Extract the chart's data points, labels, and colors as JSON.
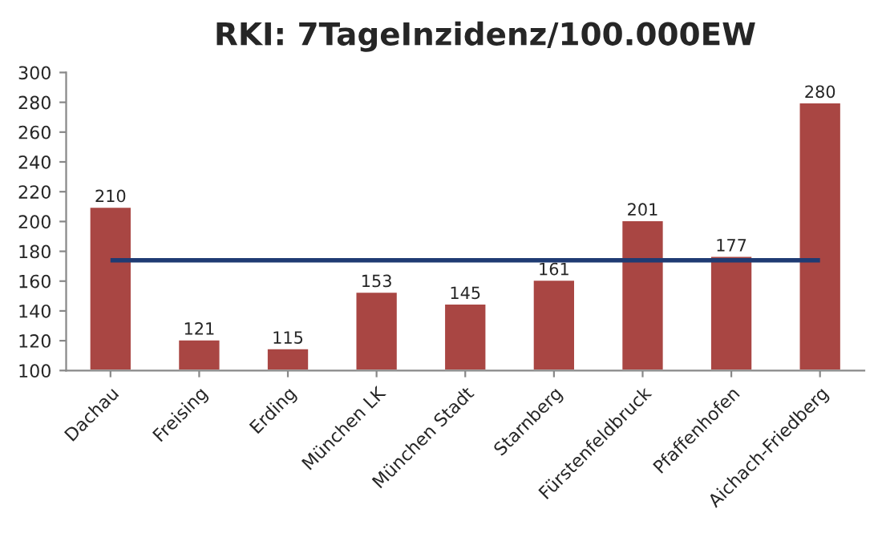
{
  "chart_data": {
    "type": "bar",
    "title": "RKI: 7TageInzidenz/100.000EW",
    "categories": [
      "Dachau",
      "Freising",
      "Erding",
      "München LK",
      "München Stadt",
      "Starnberg",
      "Fürstenfeldbruck",
      "Pfaffenhofen",
      "Aichach-Friedberg"
    ],
    "values": [
      210,
      121,
      115,
      153,
      145,
      161,
      201,
      177,
      280
    ],
    "color": "#a94643",
    "data_labels": true,
    "ylim": [
      100,
      300
    ],
    "yticks": [
      100,
      120,
      140,
      160,
      180,
      200,
      220,
      240,
      260,
      280,
      300
    ],
    "ref_lines": [
      {
        "axis": "y",
        "value": 174,
        "color": "#1f3b73"
      }
    ]
  }
}
